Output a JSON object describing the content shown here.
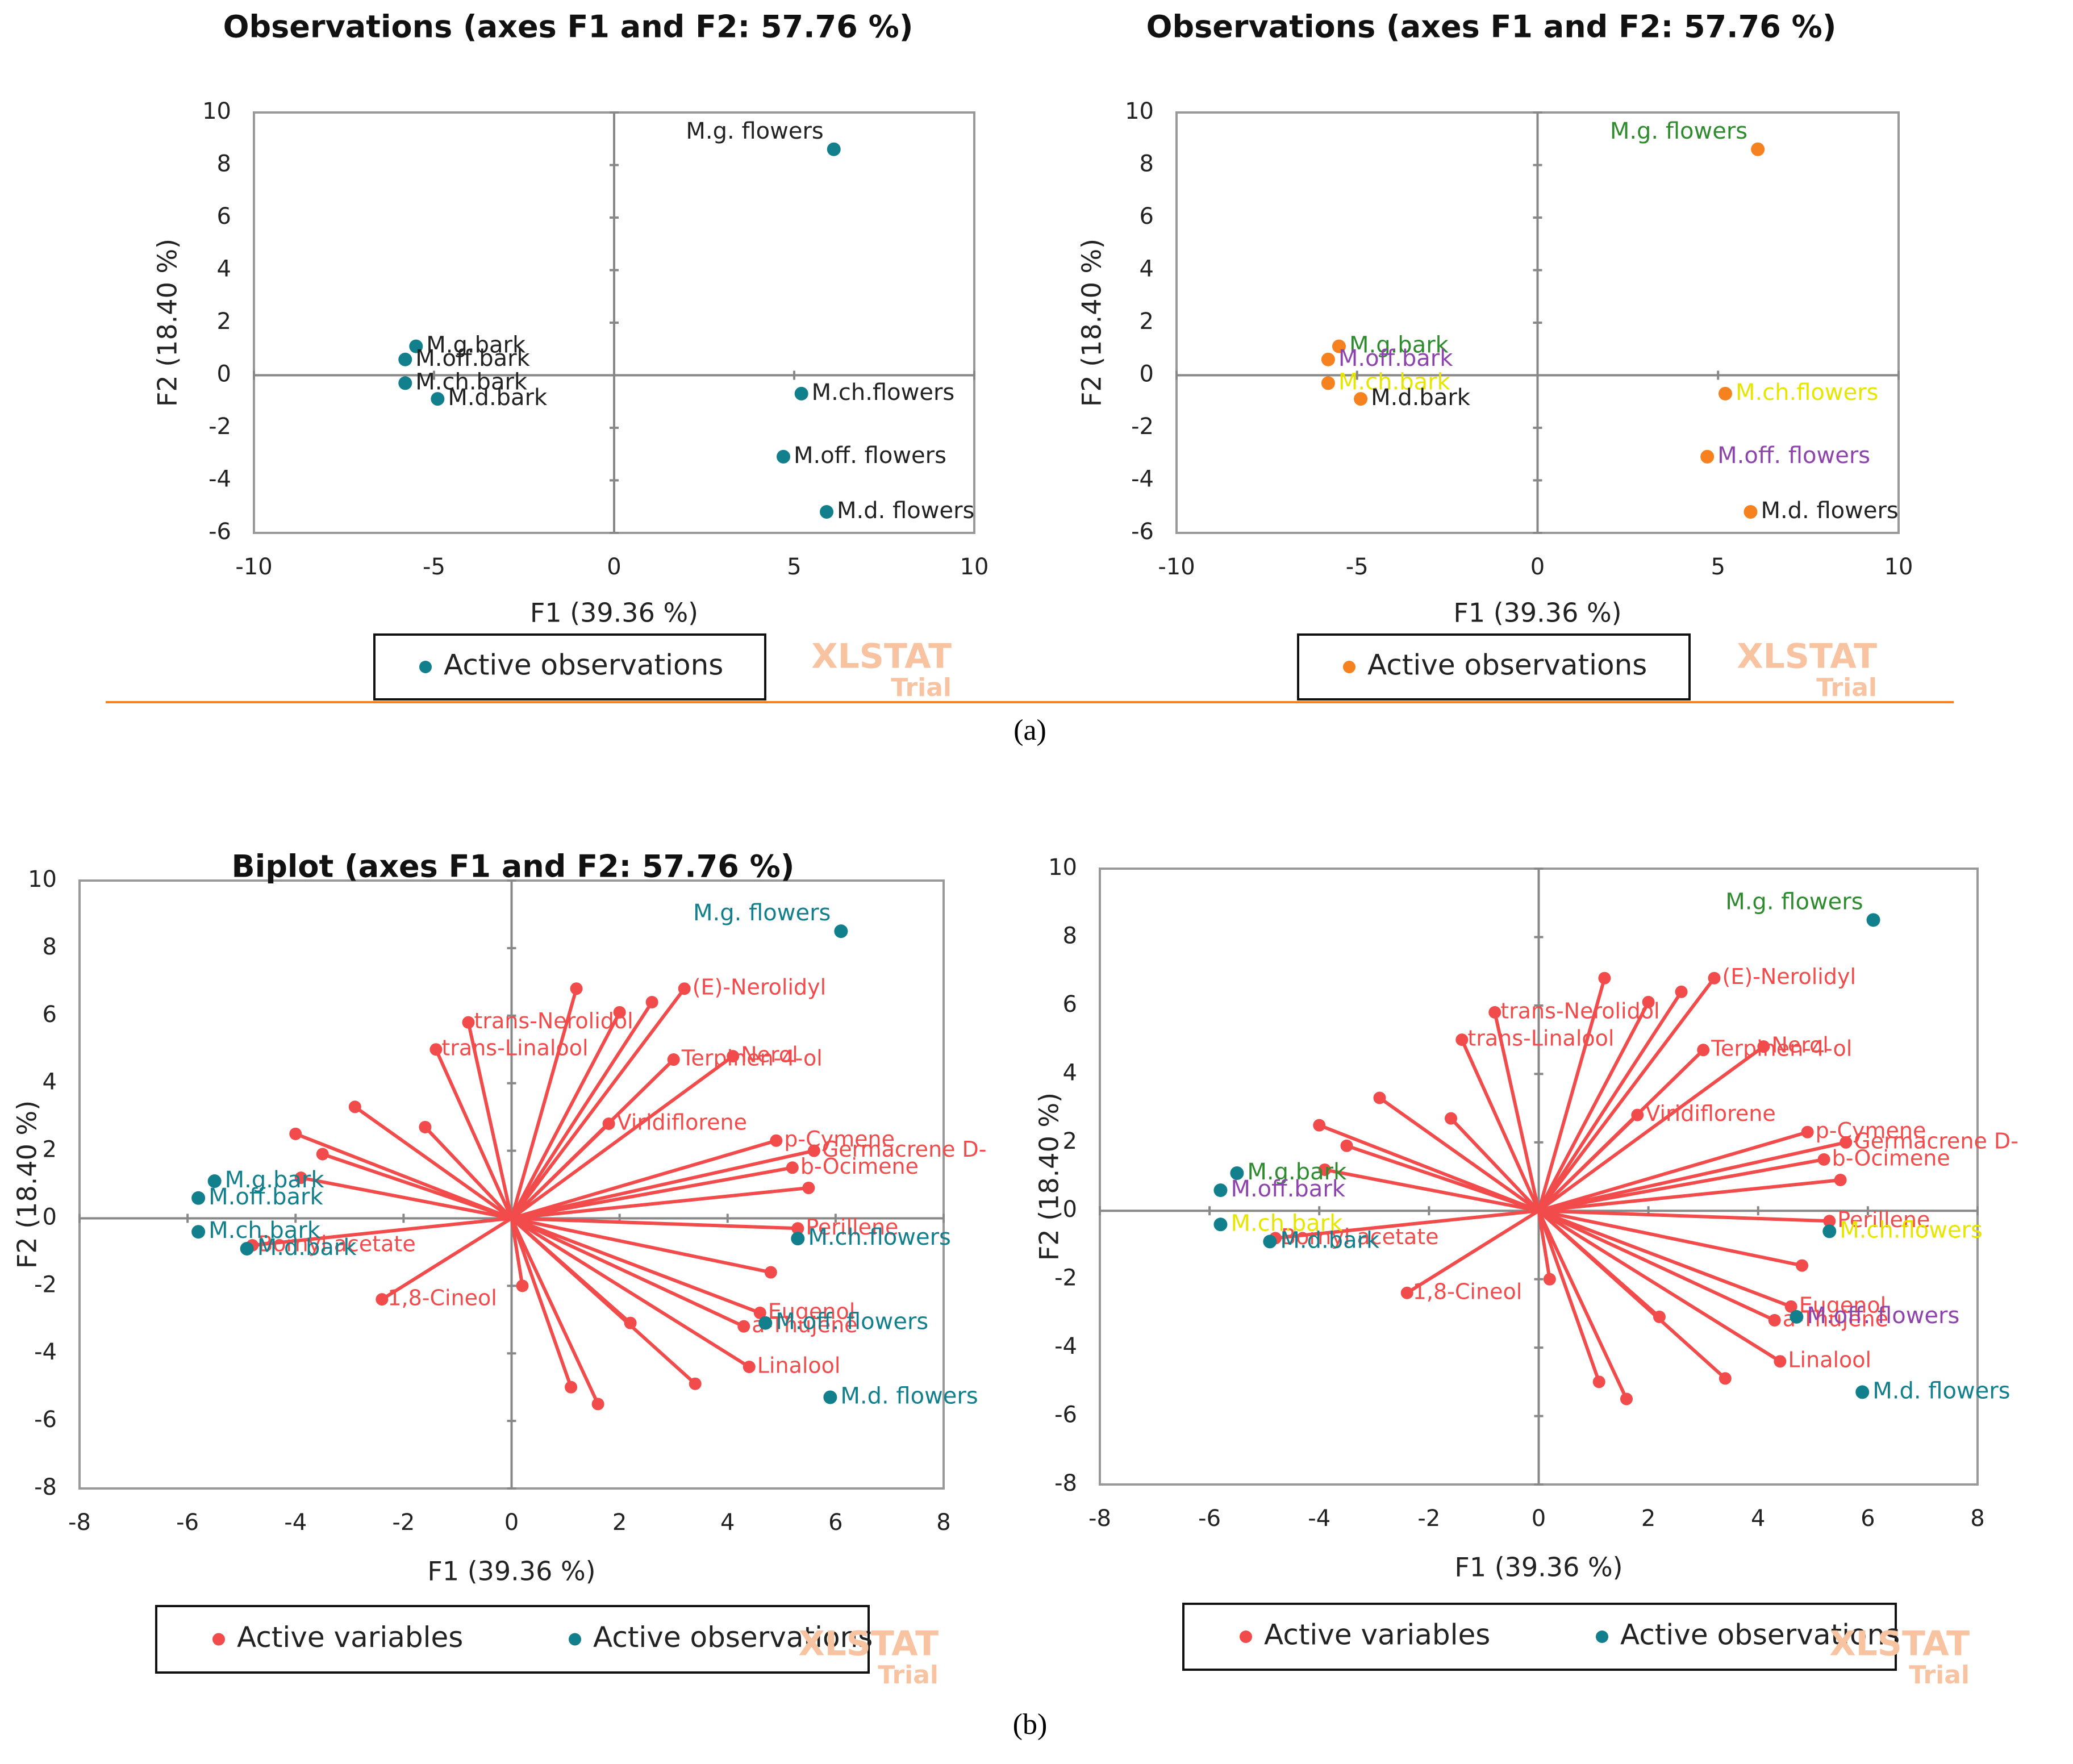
{
  "chart_data": [
    {
      "type": "scatter",
      "title": "Observations (axes F1 and F2: 57.76 %)",
      "xlabel": "F1 (39.36 %)",
      "ylabel": "F2 (18.40 %)",
      "xlim": [
        -10,
        10
      ],
      "ylim": [
        -6,
        10
      ],
      "xticks": [
        -10,
        -5,
        0,
        5,
        10
      ],
      "yticks": [
        -6,
        -4,
        -2,
        0,
        2,
        4,
        6,
        8,
        10
      ],
      "series": [
        {
          "name": "Active observations",
          "color": "#127f8c",
          "labels": [
            "M.g. flowers",
            "M.g.bark",
            "M.off.bark",
            "M.ch.bark",
            "M.d.bark",
            "M.ch.flowers",
            "M.off. flowers",
            "M.d. flowers"
          ],
          "x": [
            6.1,
            -5.5,
            -5.8,
            -5.8,
            -4.9,
            5.2,
            4.7,
            5.9
          ],
          "y": [
            8.6,
            1.1,
            0.6,
            -0.3,
            -0.9,
            -0.7,
            -3.1,
            -5.2
          ]
        }
      ]
    },
    {
      "type": "scatter",
      "title": "Observations (axes F1 and F2: 57.76 %)",
      "xlabel": "F1 (39.36 %)",
      "ylabel": "F2 (18.40 %)",
      "xlim": [
        -10,
        10
      ],
      "ylim": [
        -6,
        10
      ],
      "xticks": [
        -10,
        -5,
        0,
        5,
        10
      ],
      "yticks": [
        -6,
        -4,
        -2,
        0,
        2,
        4,
        6,
        8,
        10
      ],
      "series": [
        {
          "name": "Active observations",
          "color": "#f5821f",
          "labels": [
            "M.g. flowers",
            "M.g.bark",
            "M.off.bark",
            "M.ch.bark",
            "M.d.bark",
            "M.ch.flowers",
            "M.off. flowers",
            "M.d. flowers"
          ],
          "label_colors": [
            "#2e8b2e",
            "#2e8b2e",
            "#8e44ad",
            "#e6e600",
            "#222222",
            "#e6e600",
            "#8e44ad",
            "#222222"
          ],
          "x": [
            6.1,
            -5.5,
            -5.8,
            -5.8,
            -4.9,
            5.2,
            4.7,
            5.9
          ],
          "y": [
            8.6,
            1.1,
            0.6,
            -0.3,
            -0.9,
            -0.7,
            -3.1,
            -5.2
          ]
        }
      ]
    },
    {
      "type": "biplot",
      "title": "Biplot (axes F1 and F2: 57.76 %)",
      "xlabel": "F1 (39.36 %)",
      "ylabel": "F2 (18.40 %)",
      "xlim": [
        -8,
        8
      ],
      "ylim": [
        -8,
        10
      ],
      "xticks": [
        -8,
        -6,
        -4,
        -2,
        0,
        2,
        4,
        6,
        8
      ],
      "yticks": [
        -8,
        -6,
        -4,
        -2,
        0,
        2,
        4,
        6,
        8,
        10
      ],
      "series": [
        {
          "name": "Active variables",
          "color": "#f24b4b",
          "labels": [
            "(E)-Nerolidyl",
            "trans-Nerolidol",
            "trans-Linalool",
            "Nerol",
            "Terpinen-4-ol",
            "Viridiflorene",
            "p-Cymene",
            "b-Ocimene",
            "Perillene",
            "Eugenol",
            "a-Thujene",
            "1,8-Cineol",
            "Bornyl acetate",
            "Linalool",
            "Germacrene D-",
            null,
            null,
            null,
            null,
            null,
            null,
            null,
            null,
            null,
            null,
            null,
            null,
            null,
            null,
            null
          ],
          "x": [
            3.2,
            -0.8,
            -1.4,
            4.1,
            3.0,
            1.8,
            4.9,
            5.2,
            5.3,
            4.6,
            4.3,
            -2.4,
            -4.8,
            4.4,
            5.6,
            1.2,
            2.0,
            2.6,
            -4.0,
            -3.5,
            -2.9,
            -1.6,
            1.1,
            1.6,
            3.4,
            2.2,
            -3.9,
            5.5,
            4.8,
            0.2
          ],
          "y": [
            6.8,
            5.8,
            5.0,
            4.8,
            4.7,
            2.8,
            2.3,
            1.5,
            -0.3,
            -2.8,
            -3.2,
            -2.4,
            -0.8,
            -4.4,
            2.0,
            6.8,
            6.1,
            6.4,
            2.5,
            1.9,
            3.3,
            2.7,
            -5.0,
            -5.5,
            -4.9,
            -3.1,
            1.2,
            0.9,
            -1.6,
            -2.0
          ]
        },
        {
          "name": "Active observations",
          "color": "#127f8c",
          "labels": [
            "M.g. flowers",
            "M.g.bark",
            "M.off.bark",
            "M.ch.bark",
            "M.d.bark",
            "M.ch.flowers",
            "M.off. flowers",
            "M.d. flowers"
          ],
          "x": [
            6.1,
            -5.5,
            -5.8,
            -5.8,
            -4.9,
            5.3,
            4.7,
            5.9
          ],
          "y": [
            8.5,
            1.1,
            0.6,
            -0.4,
            -0.9,
            -0.6,
            -3.1,
            -5.3
          ]
        }
      ]
    },
    {
      "type": "biplot",
      "xlabel": "F1 (39.36 %)",
      "ylabel": "F2 (18.40 %)",
      "xlim": [
        -8,
        8
      ],
      "ylim": [
        -8,
        10
      ],
      "xticks": [
        -8,
        -6,
        -4,
        -2,
        0,
        2,
        4,
        6,
        8
      ],
      "yticks": [
        -8,
        -6,
        -4,
        -2,
        0,
        2,
        4,
        6,
        8,
        10
      ],
      "series": [
        {
          "name": "Active variables",
          "color": "#f24b4b",
          "labels": [
            "(E)-Nerolidyl",
            "trans-Nerolidol",
            "trans-Linalool",
            "Nerol",
            "Terpinen-4-ol",
            "Viridiflorene",
            "p-Cymene",
            "b-Ocimene",
            "Perillene",
            "Eugenol",
            "a-Thujene",
            "1,8-Cineol",
            "Bornyl acetate",
            "Linalool",
            "Germacrene D-",
            null,
            null,
            null,
            null,
            null,
            null,
            null,
            null,
            null,
            null,
            null,
            null,
            null,
            null,
            null
          ],
          "x": [
            3.2,
            -0.8,
            -1.4,
            4.1,
            3.0,
            1.8,
            4.9,
            5.2,
            5.3,
            4.6,
            4.3,
            -2.4,
            -4.8,
            4.4,
            5.6,
            1.2,
            2.0,
            2.6,
            -4.0,
            -3.5,
            -2.9,
            -1.6,
            1.1,
            1.6,
            3.4,
            2.2,
            -3.9,
            5.5,
            4.8,
            0.2
          ],
          "y": [
            6.8,
            5.8,
            5.0,
            4.8,
            4.7,
            2.8,
            2.3,
            1.5,
            -0.3,
            -2.8,
            -3.2,
            -2.4,
            -0.8,
            -4.4,
            2.0,
            6.8,
            6.1,
            6.4,
            2.5,
            1.9,
            3.3,
            2.7,
            -5.0,
            -5.5,
            -4.9,
            -3.1,
            1.2,
            0.9,
            -1.6,
            -2.0
          ]
        },
        {
          "name": "Active observations",
          "color": "#127f8c",
          "labels": [
            "M.g. flowers",
            "M.g.bark",
            "M.off.bark",
            "M.ch.bark",
            "M.d.bark",
            "M.ch.flowers",
            "M.off. flowers",
            "M.d. flowers"
          ],
          "label_colors": [
            "#2e8b2e",
            "#2e8b2e",
            "#8e44ad",
            "#e6e600",
            "#127f8c",
            "#e6e600",
            "#8e44ad",
            "#127f8c"
          ],
          "x": [
            6.1,
            -5.5,
            -5.8,
            -5.8,
            -4.9,
            5.3,
            4.7,
            5.9
          ],
          "y": [
            8.5,
            1.1,
            0.6,
            -0.4,
            -0.9,
            -0.6,
            -3.1,
            -5.3
          ]
        }
      ]
    }
  ],
  "watermark": {
    "line1": "XLSTAT",
    "line2": "Trial"
  },
  "captions": [
    "(a)",
    "(b)"
  ]
}
